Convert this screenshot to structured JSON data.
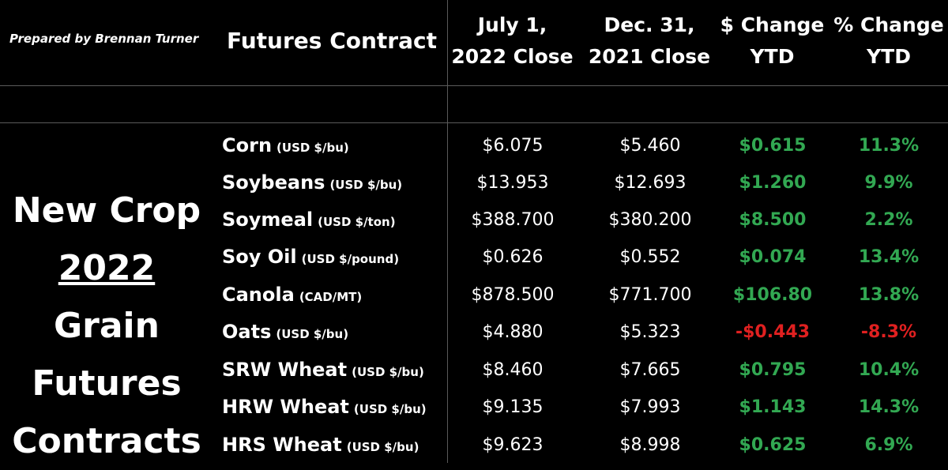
{
  "header": {
    "prepared_by": "Prepared by Brennan Turner",
    "contract": "Futures Contract",
    "july_close": "July 1, 2022 Close",
    "dec_close": "Dec. 31, 2021 Close",
    "dollar_change": "$ Change YTD",
    "percent_change": "% Change YTD"
  },
  "side_title": {
    "line1": "New Crop",
    "year": "2022",
    "line2_rest": " Grain",
    "line3": "Futures",
    "line4": "Contracts"
  },
  "colors": {
    "positive": "#32a852",
    "negative": "#e02020",
    "background": "#000000",
    "text": "#ffffff"
  },
  "rows": [
    {
      "name": "Corn",
      "unit": "(USD $/bu)",
      "july": "$6.075",
      "dec": "$5.460",
      "dchg": "$0.615",
      "pchg": "11.3%",
      "sign": "pos"
    },
    {
      "name": "Soybeans",
      "unit": "(USD $/bu)",
      "july": "$13.953",
      "dec": "$12.693",
      "dchg": "$1.260",
      "pchg": "9.9%",
      "sign": "pos"
    },
    {
      "name": "Soymeal",
      "unit": "(USD $/ton)",
      "july": "$388.700",
      "dec": "$380.200",
      "dchg": "$8.500",
      "pchg": "2.2%",
      "sign": "pos"
    },
    {
      "name": "Soy Oil",
      "unit": "(USD $/pound)",
      "july": "$0.626",
      "dec": "$0.552",
      "dchg": "$0.074",
      "pchg": "13.4%",
      "sign": "pos"
    },
    {
      "name": "Canola",
      "unit": "(CAD/MT)",
      "july": "$878.500",
      "dec": "$771.700",
      "dchg": "$106.80",
      "pchg": "13.8%",
      "sign": "pos"
    },
    {
      "name": "Oats",
      "unit": "(USD $/bu)",
      "july": "$4.880",
      "dec": "$5.323",
      "dchg": "-$0.443",
      "pchg": "-8.3%",
      "sign": "neg"
    },
    {
      "name": "SRW Wheat",
      "unit": "(USD $/bu)",
      "july": "$8.460",
      "dec": "$7.665",
      "dchg": "$0.795",
      "pchg": "10.4%",
      "sign": "pos"
    },
    {
      "name": "HRW Wheat",
      "unit": "(USD $/bu)",
      "july": "$9.135",
      "dec": "$7.993",
      "dchg": "$1.143",
      "pchg": "14.3%",
      "sign": "pos"
    },
    {
      "name": "HRS Wheat",
      "unit": "(USD $/bu)",
      "july": "$9.623",
      "dec": "$8.998",
      "dchg": "$0.625",
      "pchg": "6.9%",
      "sign": "pos"
    }
  ]
}
